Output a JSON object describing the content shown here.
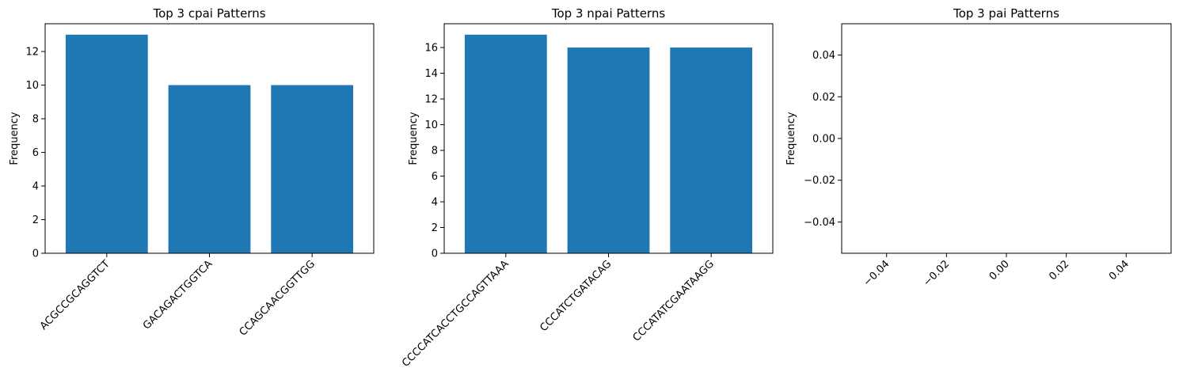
{
  "chart_data": [
    {
      "type": "bar",
      "title": "Top 3 cpai Patterns",
      "xlabel": "",
      "ylabel": "Frequency",
      "categories": [
        "ACGCCGCAGGTCT",
        "GACAGACTGGTCA",
        "CCAGCAACGGTTGG"
      ],
      "values": [
        13,
        10,
        10
      ],
      "ylim": [
        0,
        13.65
      ],
      "yticks": [
        0,
        2,
        4,
        6,
        8,
        10,
        12
      ],
      "ytick_labels": [
        "0",
        "2",
        "4",
        "6",
        "8",
        "10",
        "12"
      ],
      "xtick_rotation": 45,
      "bar_color": "#1f77b4",
      "grid": false,
      "legend": "none"
    },
    {
      "type": "bar",
      "title": "Top 3 npai Patterns",
      "xlabel": "",
      "ylabel": "Frequency",
      "categories": [
        "CCCCATCACCTGCCAGTTAAA",
        "CCCATCTGATACAG",
        "CCCATATCGAATAAGG"
      ],
      "values": [
        17,
        16,
        16
      ],
      "ylim": [
        0,
        17.85
      ],
      "yticks": [
        0,
        2,
        4,
        6,
        8,
        10,
        12,
        14,
        16
      ],
      "ytick_labels": [
        "0",
        "2",
        "4",
        "6",
        "8",
        "10",
        "12",
        "14",
        "16"
      ],
      "xtick_rotation": 45,
      "bar_color": "#1f77b4",
      "grid": false,
      "legend": "none"
    },
    {
      "type": "bar",
      "title": "Top 3 pai Patterns",
      "xlabel": "",
      "ylabel": "Frequency",
      "categories": [],
      "values": [],
      "xlim": [
        -0.055,
        0.055
      ],
      "ylim": [
        -0.055,
        0.055
      ],
      "xticks": [
        -0.04,
        -0.02,
        0.0,
        0.02,
        0.04
      ],
      "xtick_labels": [
        "−0.04",
        "−0.02",
        "0.00",
        "0.02",
        "0.04"
      ],
      "yticks": [
        -0.04,
        -0.02,
        0.0,
        0.02,
        0.04
      ],
      "ytick_labels": [
        "−0.04",
        "−0.02",
        "0.00",
        "0.02",
        "0.04"
      ],
      "xtick_rotation": 45,
      "bar_color": "#1f77b4",
      "grid": false,
      "legend": "none"
    }
  ]
}
